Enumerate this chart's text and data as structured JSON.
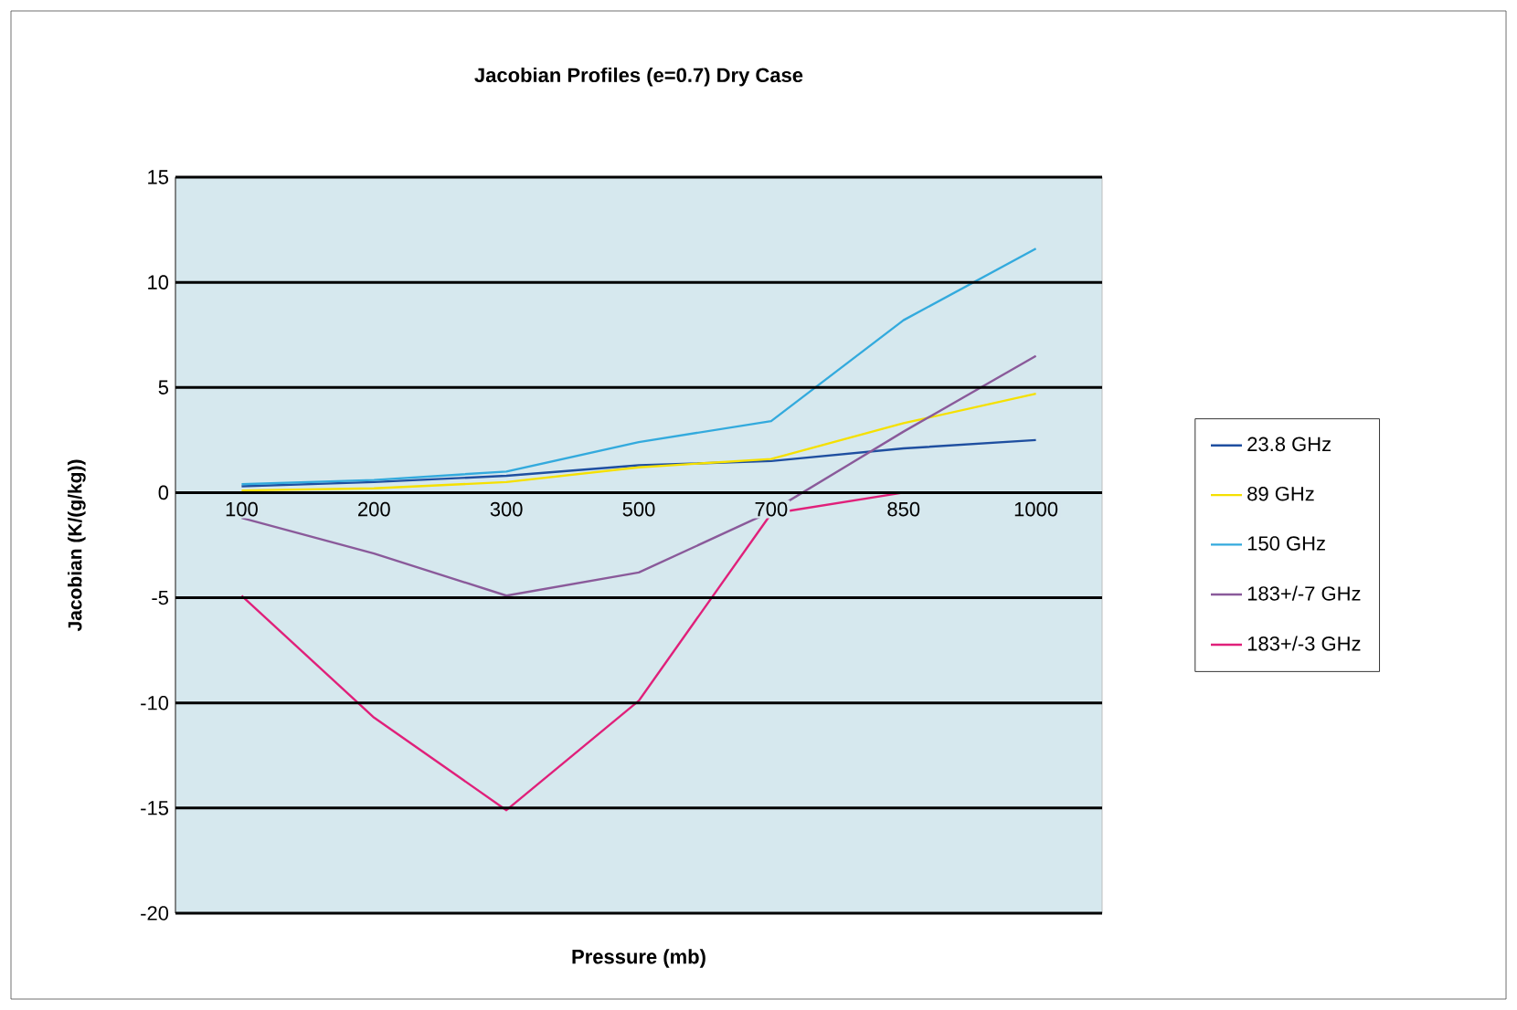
{
  "chart_data": {
    "type": "line",
    "title": "Jacobian Profiles (e=0.7) Dry Case",
    "xlabel": "Pressure (mb)",
    "ylabel": "Jacobian (K/(g/kg))",
    "categories": [
      "100",
      "200",
      "300",
      "500",
      "700",
      "850",
      "1000"
    ],
    "series": [
      {
        "name": "23.8 GHz",
        "color": "#1f4fa0",
        "values": [
          0.3,
          0.5,
          0.8,
          1.3,
          1.5,
          2.1,
          2.5
        ]
      },
      {
        "name": "89 GHz",
        "color": "#f5e000",
        "values": [
          0.1,
          0.2,
          0.5,
          1.2,
          1.6,
          3.3,
          4.7
        ]
      },
      {
        "name": "150 GHz",
        "color": "#33aadd",
        "values": [
          0.4,
          0.6,
          1.0,
          2.4,
          3.4,
          8.2,
          11.6
        ]
      },
      {
        "name": "183+/-7 GHz",
        "color": "#8a5a9a",
        "values": [
          -1.2,
          -2.9,
          -4.9,
          -3.8,
          -0.9,
          2.9,
          6.5
        ]
      },
      {
        "name": "183+/-3 GHz",
        "color": "#e0207a",
        "values": [
          -4.9,
          -10.7,
          -15.1,
          -9.9,
          -1.0,
          0,
          0
        ]
      }
    ],
    "ylim": [
      -20,
      15
    ],
    "yticks": [
      -20,
      -15,
      -10,
      -5,
      0,
      5,
      10,
      15
    ],
    "grid": "y",
    "legend": "right"
  }
}
